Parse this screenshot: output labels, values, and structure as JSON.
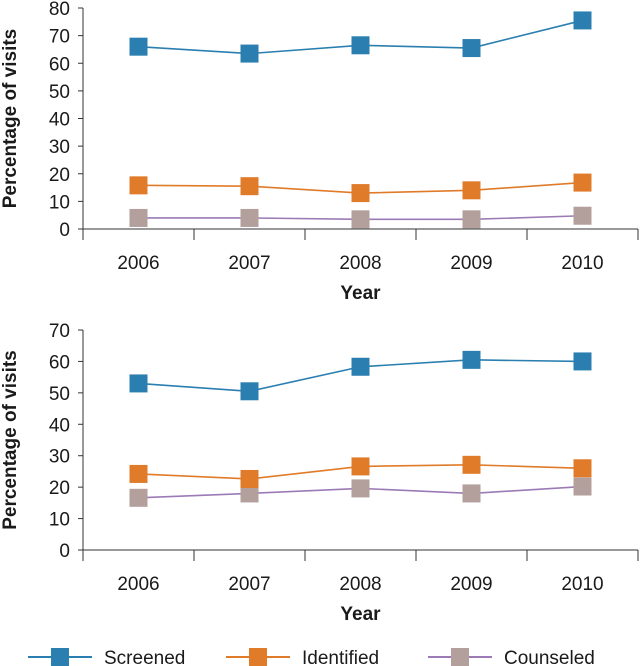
{
  "chart_data": [
    {
      "type": "line",
      "xlabel": "Year",
      "ylabel": "Percentage of visits",
      "categories": [
        "2006",
        "2007",
        "2008",
        "2009",
        "2010"
      ],
      "ylim": [
        0,
        80
      ],
      "yticks": [
        0,
        10,
        20,
        30,
        40,
        50,
        60,
        70,
        80
      ],
      "grid": false,
      "series": [
        {
          "name": "Screened",
          "values": [
            66,
            63.5,
            66.5,
            65.5,
            75.5
          ]
        },
        {
          "name": "Identified",
          "values": [
            15.8,
            15.5,
            13,
            14,
            16.8
          ]
        },
        {
          "name": "Counseled",
          "values": [
            4,
            4,
            3.5,
            3.5,
            4.8
          ]
        }
      ]
    },
    {
      "type": "line",
      "xlabel": "Year",
      "ylabel": "Percentage of visits",
      "categories": [
        "2006",
        "2007",
        "2008",
        "2009",
        "2010"
      ],
      "ylim": [
        0,
        70
      ],
      "yticks": [
        0,
        10,
        20,
        30,
        40,
        50,
        60,
        70
      ],
      "grid": false,
      "series": [
        {
          "name": "Screened",
          "values": [
            53,
            50.5,
            58.3,
            60.5,
            60
          ]
        },
        {
          "name": "Identified",
          "values": [
            24.2,
            22.6,
            26.6,
            27.1,
            26
          ]
        },
        {
          "name": "Counseled",
          "values": [
            16.6,
            18,
            19.6,
            18,
            20.2
          ]
        }
      ]
    }
  ],
  "legend": {
    "position": "bottom",
    "items": [
      {
        "label": "Screened",
        "color": "#2b7fb0"
      },
      {
        "label": "Identified",
        "color": "#e07b2a"
      },
      {
        "label": "Counseled",
        "color": "#b3a09d"
      }
    ]
  },
  "series_colors": {
    "Screened": {
      "line": "#2b7fb0",
      "marker": "#2b7fb0"
    },
    "Identified": {
      "line": "#e07b2a",
      "marker": "#e07b2a"
    },
    "Counseled": {
      "line": "#9b7ab5",
      "marker": "#b3a09d"
    }
  }
}
